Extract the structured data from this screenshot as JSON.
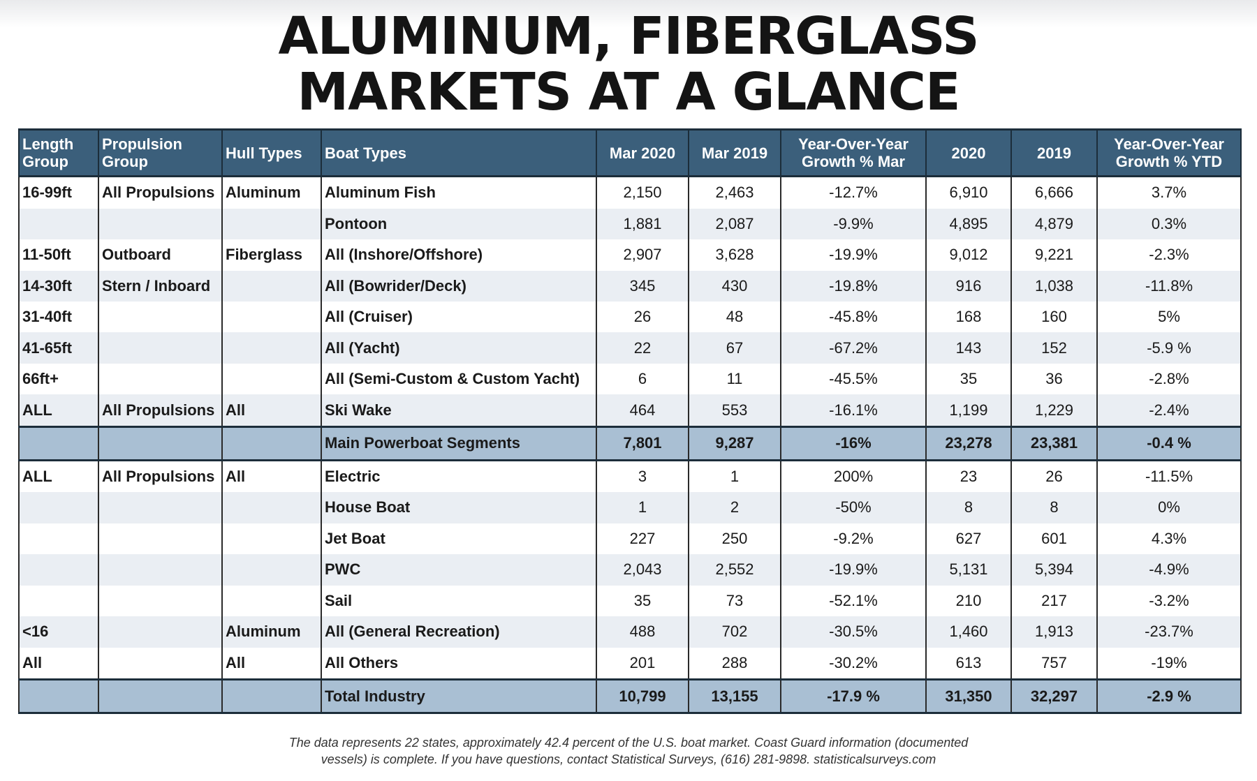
{
  "title": {
    "line1": "ALUMINUM, FIBERGLASS",
    "line2": "MARKETS AT A GLANCE"
  },
  "table": {
    "headers": {
      "length_group": "Length Group",
      "propulsion_group": "Propulsion Group",
      "hull_types": "Hull Types",
      "boat_types": "Boat Types",
      "mar_2020": "Mar 2020",
      "mar_2019": "Mar 2019",
      "yoy_mar": "Year-Over-Year Growth % Mar",
      "y2020": "2020",
      "y2019": "2019",
      "yoy_ytd": "Year-Over-Year Growth % YTD"
    },
    "rows": [
      {
        "length": "16-99ft",
        "propulsion": "All Propulsions",
        "hull": "Aluminum",
        "boat": "Aluminum Fish",
        "mar2020": "2,150",
        "mar2019": "2,463",
        "yoy_mar": "-12.7%",
        "y2020": "6,910",
        "y2019": "6,666",
        "yoy_ytd": "3.7%"
      },
      {
        "length": "",
        "propulsion": "",
        "hull": "",
        "boat": "Pontoon",
        "mar2020": "1,881",
        "mar2019": "2,087",
        "yoy_mar": "-9.9%",
        "y2020": "4,895",
        "y2019": "4,879",
        "yoy_ytd": "0.3%"
      },
      {
        "length": "11-50ft",
        "propulsion": "Outboard",
        "hull": "Fiberglass",
        "boat": "All (Inshore/Offshore)",
        "mar2020": "2,907",
        "mar2019": "3,628",
        "yoy_mar": "-19.9%",
        "y2020": "9,012",
        "y2019": "9,221",
        "yoy_ytd": "-2.3%"
      },
      {
        "length": "14-30ft",
        "propulsion": "Stern / Inboard",
        "hull": "",
        "boat": "All (Bowrider/Deck)",
        "mar2020": "345",
        "mar2019": "430",
        "yoy_mar": "-19.8%",
        "y2020": "916",
        "y2019": "1,038",
        "yoy_ytd": "-11.8%"
      },
      {
        "length": "31-40ft",
        "propulsion": "",
        "hull": "",
        "boat": "All (Cruiser)",
        "mar2020": "26",
        "mar2019": "48",
        "yoy_mar": "-45.8%",
        "y2020": "168",
        "y2019": "160",
        "yoy_ytd": "5%"
      },
      {
        "length": "41-65ft",
        "propulsion": "",
        "hull": "",
        "boat": "All (Yacht)",
        "mar2020": "22",
        "mar2019": "67",
        "yoy_mar": "-67.2%",
        "y2020": "143",
        "y2019": "152",
        "yoy_ytd": "-5.9 %"
      },
      {
        "length": "66ft+",
        "propulsion": "",
        "hull": "",
        "boat": "All (Semi-Custom & Custom Yacht)",
        "mar2020": "6",
        "mar2019": "11",
        "yoy_mar": "-45.5%",
        "y2020": "35",
        "y2019": "36",
        "yoy_ytd": "-2.8%"
      },
      {
        "length": "ALL",
        "propulsion": "All Propulsions",
        "hull": "All",
        "boat": "Ski Wake",
        "mar2020": "464",
        "mar2019": "553",
        "yoy_mar": "-16.1%",
        "y2020": "1,199",
        "y2019": "1,229",
        "yoy_ytd": "-2.4%"
      },
      {
        "summary": true,
        "length": "",
        "propulsion": "",
        "hull": "",
        "boat": "Main Powerboat Segments",
        "mar2020": "7,801",
        "mar2019": "9,287",
        "yoy_mar": "-16%",
        "y2020": "23,278",
        "y2019": "23,381",
        "yoy_ytd": "-0.4 %"
      },
      {
        "length": "ALL",
        "propulsion": "All Propulsions",
        "hull": "All",
        "boat": "Electric",
        "mar2020": "3",
        "mar2019": "1",
        "yoy_mar": "200%",
        "y2020": "23",
        "y2019": "26",
        "yoy_ytd": "-11.5%"
      },
      {
        "length": "",
        "propulsion": "",
        "hull": "",
        "boat": "House Boat",
        "mar2020": "1",
        "mar2019": "2",
        "yoy_mar": "-50%",
        "y2020": "8",
        "y2019": "8",
        "yoy_ytd": "0%"
      },
      {
        "length": "",
        "propulsion": "",
        "hull": "",
        "boat": "Jet Boat",
        "mar2020": "227",
        "mar2019": "250",
        "yoy_mar": "-9.2%",
        "y2020": "627",
        "y2019": "601",
        "yoy_ytd": "4.3%"
      },
      {
        "length": "",
        "propulsion": "",
        "hull": "",
        "boat": "PWC",
        "mar2020": "2,043",
        "mar2019": "2,552",
        "yoy_mar": "-19.9%",
        "y2020": "5,131",
        "y2019": "5,394",
        "yoy_ytd": "-4.9%"
      },
      {
        "length": "",
        "propulsion": "",
        "hull": "",
        "boat": "Sail",
        "mar2020": "35",
        "mar2019": "73",
        "yoy_mar": "-52.1%",
        "y2020": "210",
        "y2019": "217",
        "yoy_ytd": "-3.2%"
      },
      {
        "length": "<16",
        "propulsion": "",
        "hull": "Aluminum",
        "boat": "All (General Recreation)",
        "mar2020": "488",
        "mar2019": "702",
        "yoy_mar": "-30.5%",
        "y2020": "1,460",
        "y2019": "1,913",
        "yoy_ytd": "-23.7%"
      },
      {
        "length": "All",
        "propulsion": "",
        "hull": "All",
        "boat": "All Others",
        "mar2020": "201",
        "mar2019": "288",
        "yoy_mar": "-30.2%",
        "y2020": "613",
        "y2019": "757",
        "yoy_ytd": "-19%"
      },
      {
        "summary": true,
        "length": "",
        "propulsion": "",
        "hull": "",
        "boat": "Total Industry",
        "mar2020": "10,799",
        "mar2019": "13,155",
        "yoy_mar": "-17.9 %",
        "y2020": "31,350",
        "y2019": "32,297",
        "yoy_ytd": "-2.9 %"
      }
    ]
  },
  "footnote": {
    "line1": "The data represents 22 states, approximately 42.4 percent of the U.S. boat market. Coast Guard information (documented",
    "line2": "vessels) is complete. If you have questions, contact Statistical Surveys, (616) 281-9898. statisticalsurveys.com"
  }
}
